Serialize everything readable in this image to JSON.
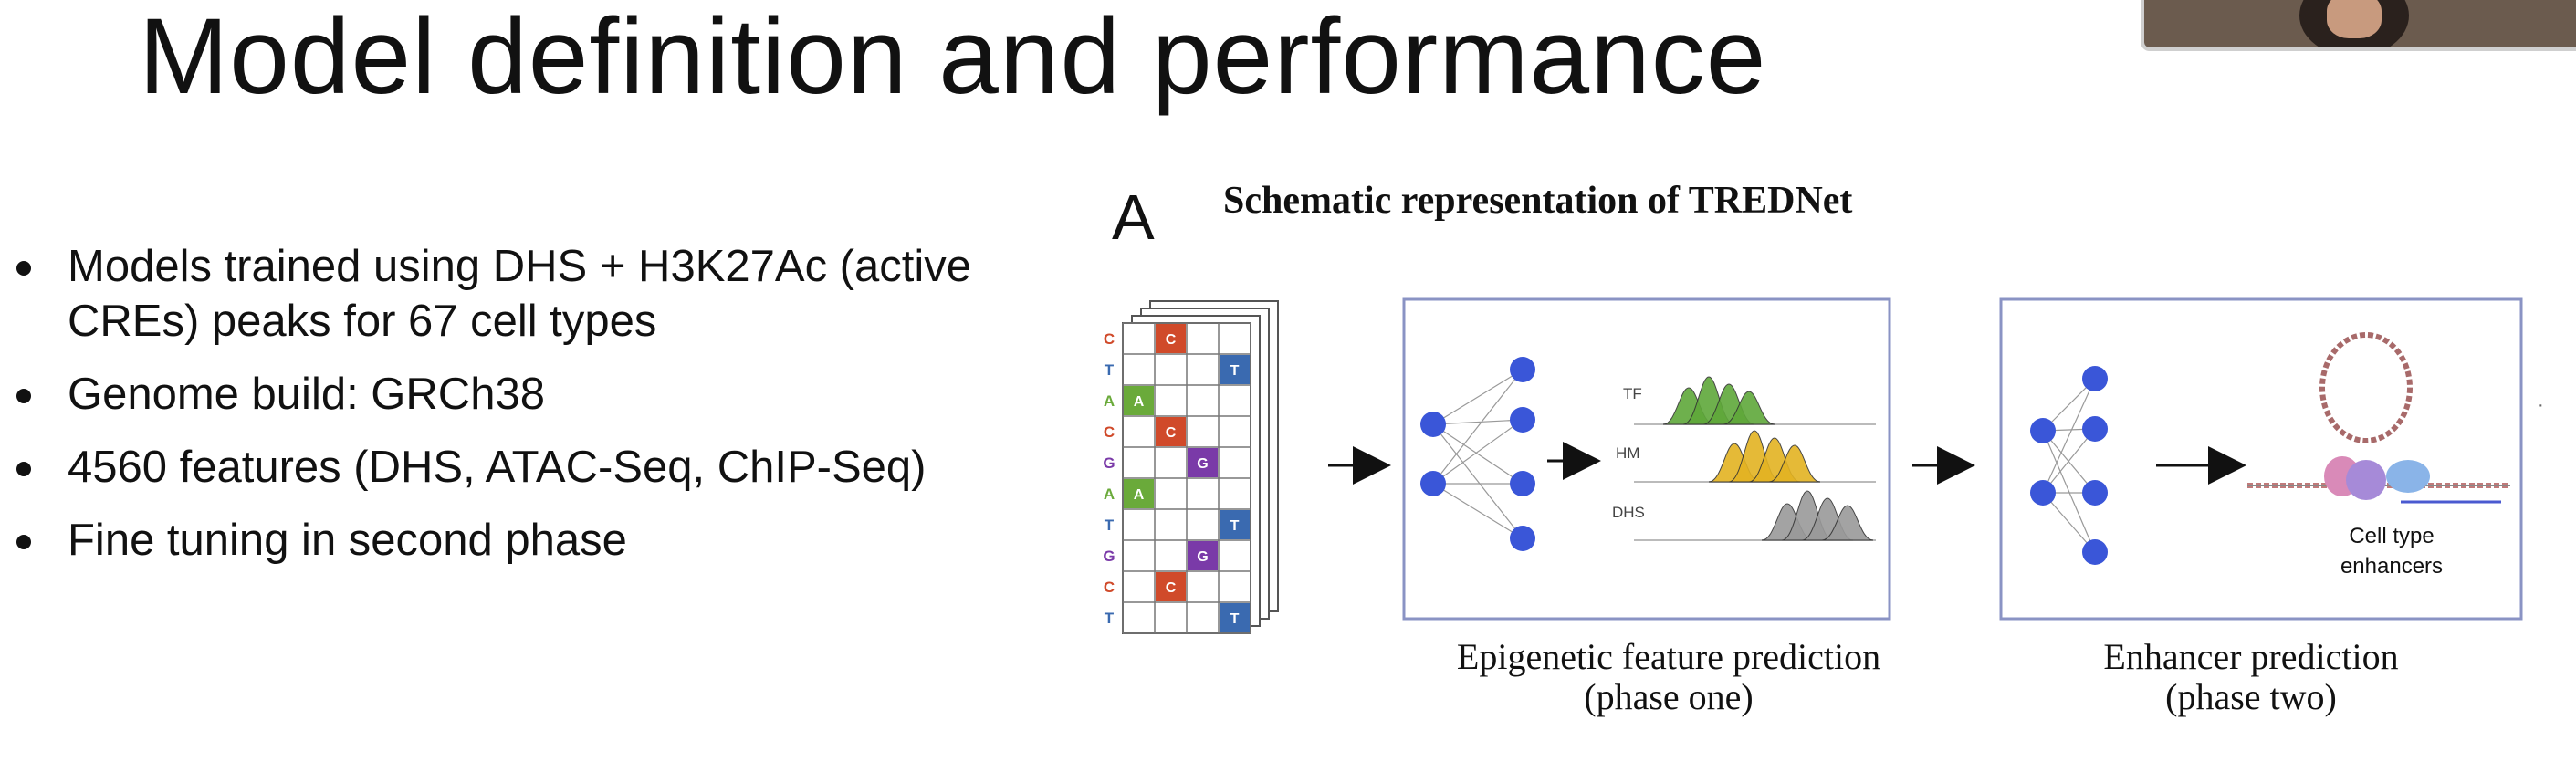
{
  "slide": {
    "title": "Model definition and performance",
    "bullets": [
      {
        "text": "Models trained using DHS + H3K27Ac (active CREs) peaks for 67 cell types"
      },
      {
        "text": "Genome build: GRCh38"
      },
      {
        "text": "4560 features (DHS, ATAC-Seq, ChIP-Seq)"
      },
      {
        "text": "Fine tuning in second phase"
      }
    ]
  },
  "figure": {
    "panel_letter": "A",
    "title": "Schematic representation of TREDNet",
    "sequence_letters": [
      "C",
      "T",
      "A",
      "C",
      "G",
      "A",
      "T",
      "G",
      "C",
      "T"
    ],
    "onehot_labels": [
      "C",
      "T",
      "A",
      "C",
      "G",
      "A",
      "T",
      "G",
      "C",
      "T"
    ],
    "track_labels": {
      "tf": "TF",
      "hm": "HM",
      "dhs": "DHS"
    },
    "enhancer_label_line1": "Cell type",
    "enhancer_label_line2": "enhancers",
    "phase_one_caption_line1": "Epigenetic feature prediction",
    "phase_one_caption_line2": "(phase one)",
    "phase_two_caption_line1": "Enhancer prediction",
    "phase_two_caption_line2": "(phase two)",
    "colors": {
      "A": "#6aaa3a",
      "C": "#d04a2a",
      "G": "#7a3aa8",
      "T": "#3a6ab0",
      "node": "#3a56d8",
      "tf": "#5fa83a",
      "hm": "#e3b322",
      "dhs": "#9a9a9a",
      "box_border": "#8a93c4"
    }
  }
}
